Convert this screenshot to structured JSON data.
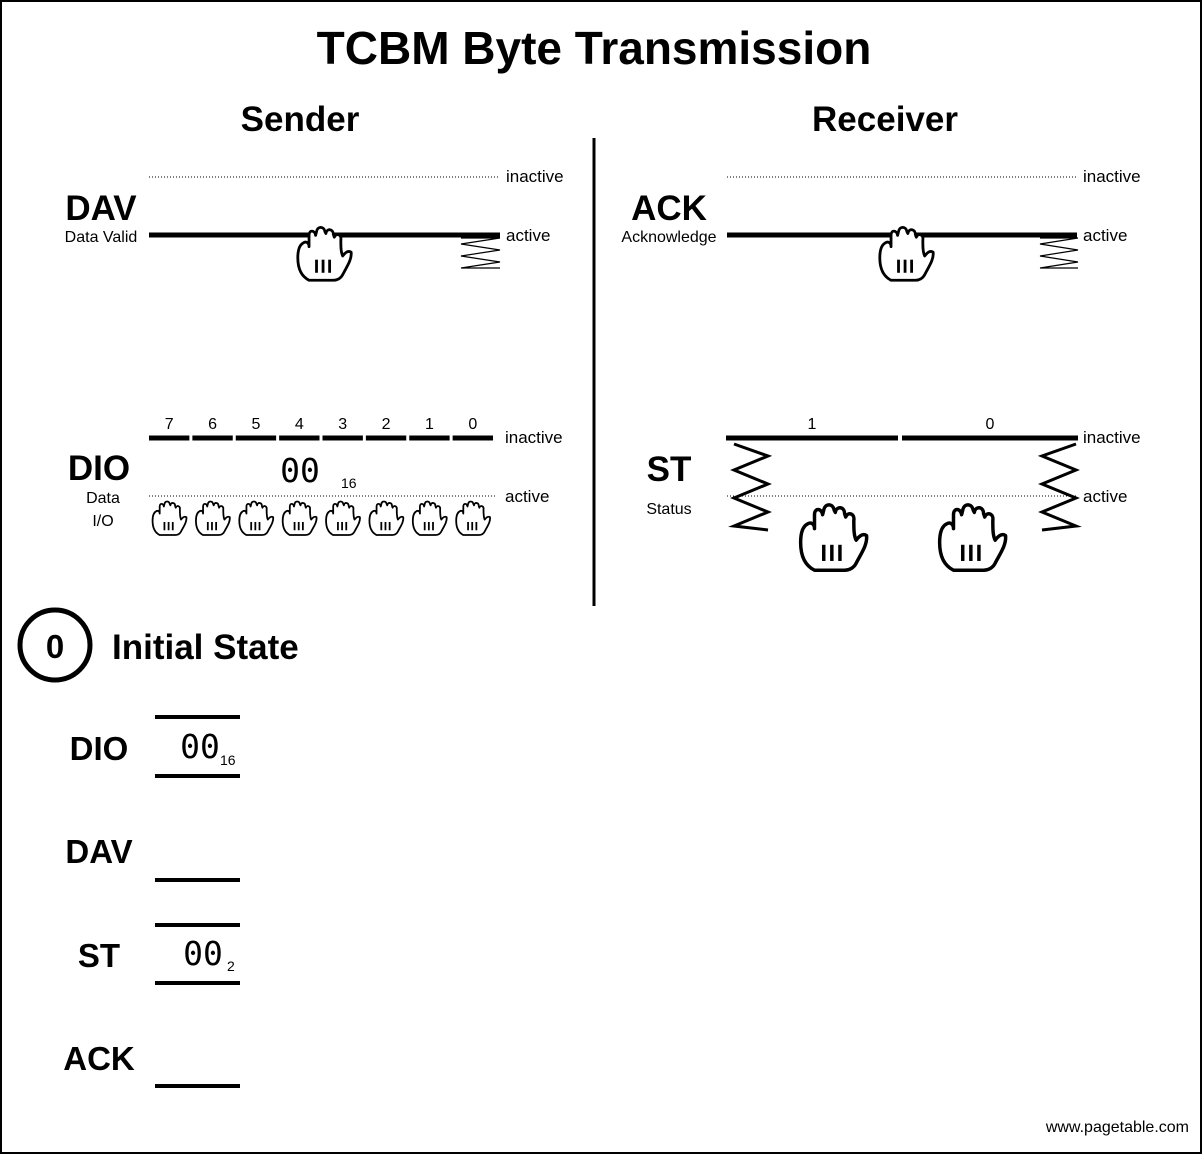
{
  "title": "TCBM Byte Transmission",
  "sender": {
    "heading": "Sender",
    "dav": {
      "label": "DAV",
      "sublabel": "Data Valid"
    },
    "dio": {
      "label": "DIO",
      "sublabel_line1": "Data",
      "sublabel_line2": "I/O",
      "bits": [
        "7",
        "6",
        "5",
        "4",
        "3",
        "2",
        "1",
        "0"
      ],
      "value": "00",
      "base": "16"
    }
  },
  "receiver": {
    "heading": "Receiver",
    "ack": {
      "label": "ACK",
      "sublabel": "Acknowledge"
    },
    "st": {
      "label": "ST",
      "sublabel": "Status",
      "bits": [
        "1",
        "0"
      ]
    }
  },
  "levels": {
    "inactive": "inactive",
    "active": "active"
  },
  "state": {
    "number": "0",
    "label": "Initial State",
    "signals": {
      "dio": {
        "label": "DIO",
        "value": "00",
        "base": "16"
      },
      "dav": {
        "label": "DAV"
      },
      "st": {
        "label": "ST",
        "value": "00",
        "base": "2"
      },
      "ack": {
        "label": "ACK"
      }
    }
  },
  "credit": "www.pagetable.com"
}
